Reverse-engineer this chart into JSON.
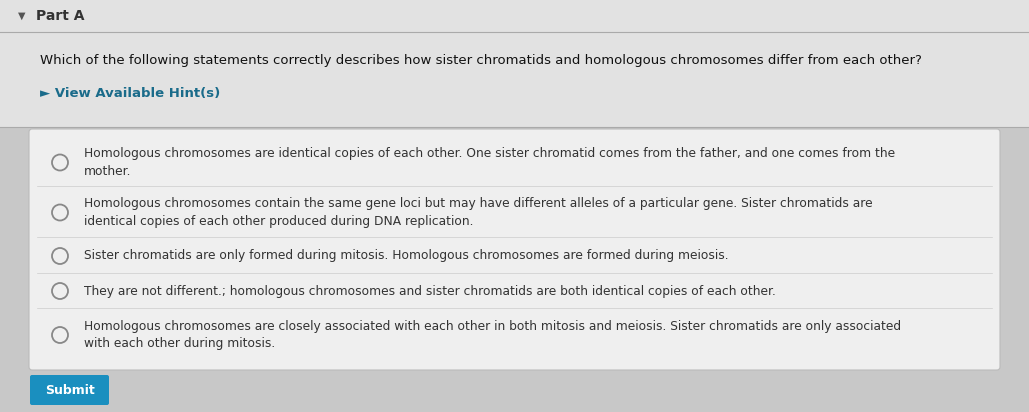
{
  "bg_color": "#c8c8c8",
  "header_bg": "#e2e2e2",
  "question_bg": "#e2e2e2",
  "box_bg": "#efefef",
  "box_border": "#bbbbbb",
  "bottom_bg": "#c8c8c8",
  "part_a_text": "Part A",
  "part_a_color": "#333333",
  "question": "Which of the following statements correctly describes how sister chromatids and homologous chromosomes differ from each other?",
  "hint_text": "► View Available Hint(s)",
  "hint_color": "#1a6b8a",
  "options": [
    "Homologous chromosomes are identical copies of each other. One sister chromatid comes from the father, and one comes from the\nmother.",
    "Homologous chromosomes contain the same gene loci but may have different alleles of a particular gene. Sister chromatids are\nidentical copies of each other produced during DNA replication.",
    "Sister chromatids are only formed during mitosis. Homologous chromosomes are formed during meiosis.",
    "They are not different.; homologous chromosomes and sister chromatids are both identical copies of each other.",
    "Homologous chromosomes are closely associated with each other in both mitosis and meiosis. Sister chromatids are only associated\nwith each other during mitosis."
  ],
  "circle_color": "#888888",
  "text_color": "#333333",
  "question_color": "#111111",
  "font_size_part": 10,
  "font_size_question": 9.5,
  "font_size_hint": 9.5,
  "font_size_option": 8.8,
  "submit_btn_color": "#1a8fbf",
  "submit_btn_text": "Submit",
  "submit_btn_text_color": "#ffffff",
  "fig_width": 10.29,
  "fig_height": 4.12,
  "dpi": 100
}
